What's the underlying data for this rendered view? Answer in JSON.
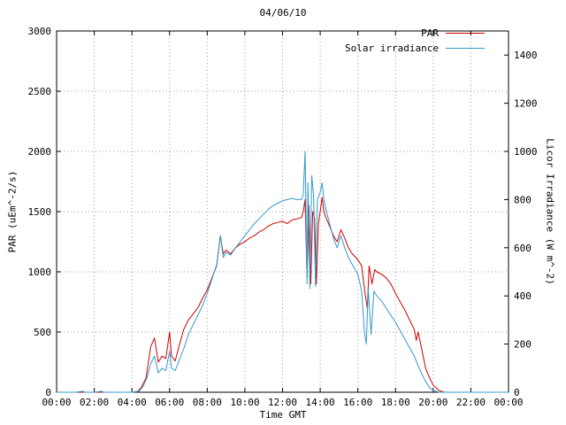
{
  "chart_data": {
    "type": "line",
    "title": "04/06/10",
    "xlabel": "Time GMT",
    "ylabel": "PAR (uEm^-2/s)",
    "ylabel_right": "Licor Irradiance (W m^-2)",
    "xlim": [
      0,
      24
    ],
    "x_ticks": [
      0,
      2,
      4,
      6,
      8,
      10,
      12,
      14,
      16,
      18,
      20,
      22,
      24
    ],
    "x_tick_labels": [
      "00:00",
      "02:00",
      "04:00",
      "06:00",
      "08:00",
      "10:00",
      "12:00",
      "14:00",
      "16:00",
      "18:00",
      "20:00",
      "22:00",
      "00:00"
    ],
    "ylim_left": [
      0,
      3000
    ],
    "y_ticks_left": [
      0,
      500,
      1000,
      1500,
      2000,
      2500,
      3000
    ],
    "ylim_right": [
      0,
      1500
    ],
    "y_ticks_right": [
      0,
      200,
      400,
      600,
      800,
      1000,
      1200,
      1400
    ],
    "grid": true,
    "legend_position": "top-right",
    "colors": {
      "grid": "#9e9e9e",
      "axis": "#000000",
      "background": "#ffffff"
    },
    "series": [
      {
        "name": "PAR",
        "axis": "left",
        "color": "#cc0000",
        "points": [
          [
            0,
            0
          ],
          [
            1,
            0
          ],
          [
            2,
            0
          ],
          [
            3,
            0
          ],
          [
            4,
            0
          ],
          [
            4.3,
            5
          ],
          [
            4.5,
            40
          ],
          [
            4.75,
            120
          ],
          [
            5.0,
            380
          ],
          [
            5.2,
            450
          ],
          [
            5.4,
            250
          ],
          [
            5.6,
            300
          ],
          [
            5.8,
            280
          ],
          [
            6.0,
            500
          ],
          [
            6.1,
            300
          ],
          [
            6.3,
            260
          ],
          [
            6.5,
            380
          ],
          [
            6.75,
            520
          ],
          [
            7.0,
            600
          ],
          [
            7.25,
            650
          ],
          [
            7.5,
            700
          ],
          [
            7.75,
            780
          ],
          [
            8.0,
            850
          ],
          [
            8.25,
            950
          ],
          [
            8.5,
            1050
          ],
          [
            8.7,
            1300
          ],
          [
            8.85,
            1150
          ],
          [
            9.0,
            1180
          ],
          [
            9.25,
            1150
          ],
          [
            9.5,
            1200
          ],
          [
            9.75,
            1230
          ],
          [
            10.0,
            1250
          ],
          [
            10.25,
            1280
          ],
          [
            10.5,
            1300
          ],
          [
            10.75,
            1330
          ],
          [
            11.0,
            1350
          ],
          [
            11.25,
            1380
          ],
          [
            11.5,
            1400
          ],
          [
            11.75,
            1410
          ],
          [
            12.0,
            1420
          ],
          [
            12.25,
            1400
          ],
          [
            12.5,
            1430
          ],
          [
            12.75,
            1440
          ],
          [
            13.0,
            1450
          ],
          [
            13.1,
            1500
          ],
          [
            13.2,
            1600
          ],
          [
            13.3,
            950
          ],
          [
            13.4,
            1550
          ],
          [
            13.5,
            900
          ],
          [
            13.6,
            1500
          ],
          [
            13.7,
            1450
          ],
          [
            13.8,
            900
          ],
          [
            13.9,
            1400
          ],
          [
            14.0,
            1500
          ],
          [
            14.1,
            1620
          ],
          [
            14.2,
            1500
          ],
          [
            14.3,
            1450
          ],
          [
            14.5,
            1380
          ],
          [
            14.7,
            1300
          ],
          [
            14.9,
            1250
          ],
          [
            15.1,
            1350
          ],
          [
            15.3,
            1280
          ],
          [
            15.5,
            1200
          ],
          [
            15.7,
            1150
          ],
          [
            16.0,
            1100
          ],
          [
            16.2,
            1050
          ],
          [
            16.4,
            800
          ],
          [
            16.5,
            700
          ],
          [
            16.6,
            1050
          ],
          [
            16.75,
            900
          ],
          [
            16.9,
            1020
          ],
          [
            17.0,
            1000
          ],
          [
            17.25,
            980
          ],
          [
            17.5,
            950
          ],
          [
            17.75,
            900
          ],
          [
            18.0,
            820
          ],
          [
            18.25,
            750
          ],
          [
            18.5,
            680
          ],
          [
            18.75,
            600
          ],
          [
            19.0,
            520
          ],
          [
            19.1,
            430
          ],
          [
            19.2,
            500
          ],
          [
            19.4,
            350
          ],
          [
            19.6,
            200
          ],
          [
            19.8,
            120
          ],
          [
            20.0,
            60
          ],
          [
            20.3,
            15
          ],
          [
            20.6,
            0
          ],
          [
            21,
            0
          ],
          [
            22,
            0
          ],
          [
            23,
            0
          ],
          [
            24,
            0
          ]
        ]
      },
      {
        "name": "Solar irradiance",
        "axis": "right",
        "color": "#3399cc",
        "points": [
          [
            0,
            0
          ],
          [
            1,
            0
          ],
          [
            1.4,
            4
          ],
          [
            1.5,
            0
          ],
          [
            2,
            0
          ],
          [
            2.4,
            4
          ],
          [
            2.5,
            0
          ],
          [
            3,
            0
          ],
          [
            4,
            0
          ],
          [
            4.4,
            5
          ],
          [
            4.6,
            25
          ],
          [
            4.8,
            60
          ],
          [
            5.0,
            120
          ],
          [
            5.2,
            150
          ],
          [
            5.4,
            80
          ],
          [
            5.6,
            100
          ],
          [
            5.8,
            90
          ],
          [
            6.0,
            170
          ],
          [
            6.1,
            100
          ],
          [
            6.3,
            90
          ],
          [
            6.5,
            130
          ],
          [
            6.75,
            180
          ],
          [
            7.0,
            240
          ],
          [
            7.25,
            280
          ],
          [
            7.5,
            320
          ],
          [
            7.75,
            360
          ],
          [
            8.0,
            410
          ],
          [
            8.25,
            470
          ],
          [
            8.5,
            530
          ],
          [
            8.7,
            650
          ],
          [
            8.85,
            560
          ],
          [
            9.0,
            580
          ],
          [
            9.25,
            570
          ],
          [
            9.5,
            600
          ],
          [
            9.75,
            625
          ],
          [
            10.0,
            650
          ],
          [
            10.25,
            675
          ],
          [
            10.5,
            700
          ],
          [
            10.75,
            720
          ],
          [
            11.0,
            740
          ],
          [
            11.25,
            760
          ],
          [
            11.5,
            775
          ],
          [
            11.75,
            785
          ],
          [
            12.0,
            795
          ],
          [
            12.25,
            800
          ],
          [
            12.5,
            805
          ],
          [
            12.75,
            800
          ],
          [
            13.0,
            800
          ],
          [
            13.1,
            820
          ],
          [
            13.2,
            1000
          ],
          [
            13.3,
            450
          ],
          [
            13.35,
            870
          ],
          [
            13.45,
            430
          ],
          [
            13.55,
            900
          ],
          [
            13.65,
            820
          ],
          [
            13.75,
            440
          ],
          [
            13.85,
            800
          ],
          [
            14.0,
            830
          ],
          [
            14.1,
            870
          ],
          [
            14.2,
            800
          ],
          [
            14.3,
            760
          ],
          [
            14.5,
            700
          ],
          [
            14.7,
            640
          ],
          [
            14.9,
            600
          ],
          [
            15.1,
            650
          ],
          [
            15.3,
            600
          ],
          [
            15.5,
            560
          ],
          [
            15.7,
            530
          ],
          [
            16.0,
            490
          ],
          [
            16.2,
            420
          ],
          [
            16.35,
            250
          ],
          [
            16.45,
            200
          ],
          [
            16.55,
            430
          ],
          [
            16.7,
            240
          ],
          [
            16.85,
            420
          ],
          [
            17.0,
            400
          ],
          [
            17.25,
            380
          ],
          [
            17.5,
            350
          ],
          [
            17.75,
            320
          ],
          [
            18.0,
            290
          ],
          [
            18.25,
            255
          ],
          [
            18.5,
            220
          ],
          [
            18.75,
            185
          ],
          [
            19.0,
            150
          ],
          [
            19.2,
            110
          ],
          [
            19.4,
            75
          ],
          [
            19.6,
            45
          ],
          [
            19.8,
            20
          ],
          [
            20.0,
            8
          ],
          [
            20.3,
            0
          ],
          [
            21,
            0
          ],
          [
            22,
            0
          ],
          [
            23,
            0
          ],
          [
            24,
            0
          ]
        ]
      }
    ]
  }
}
